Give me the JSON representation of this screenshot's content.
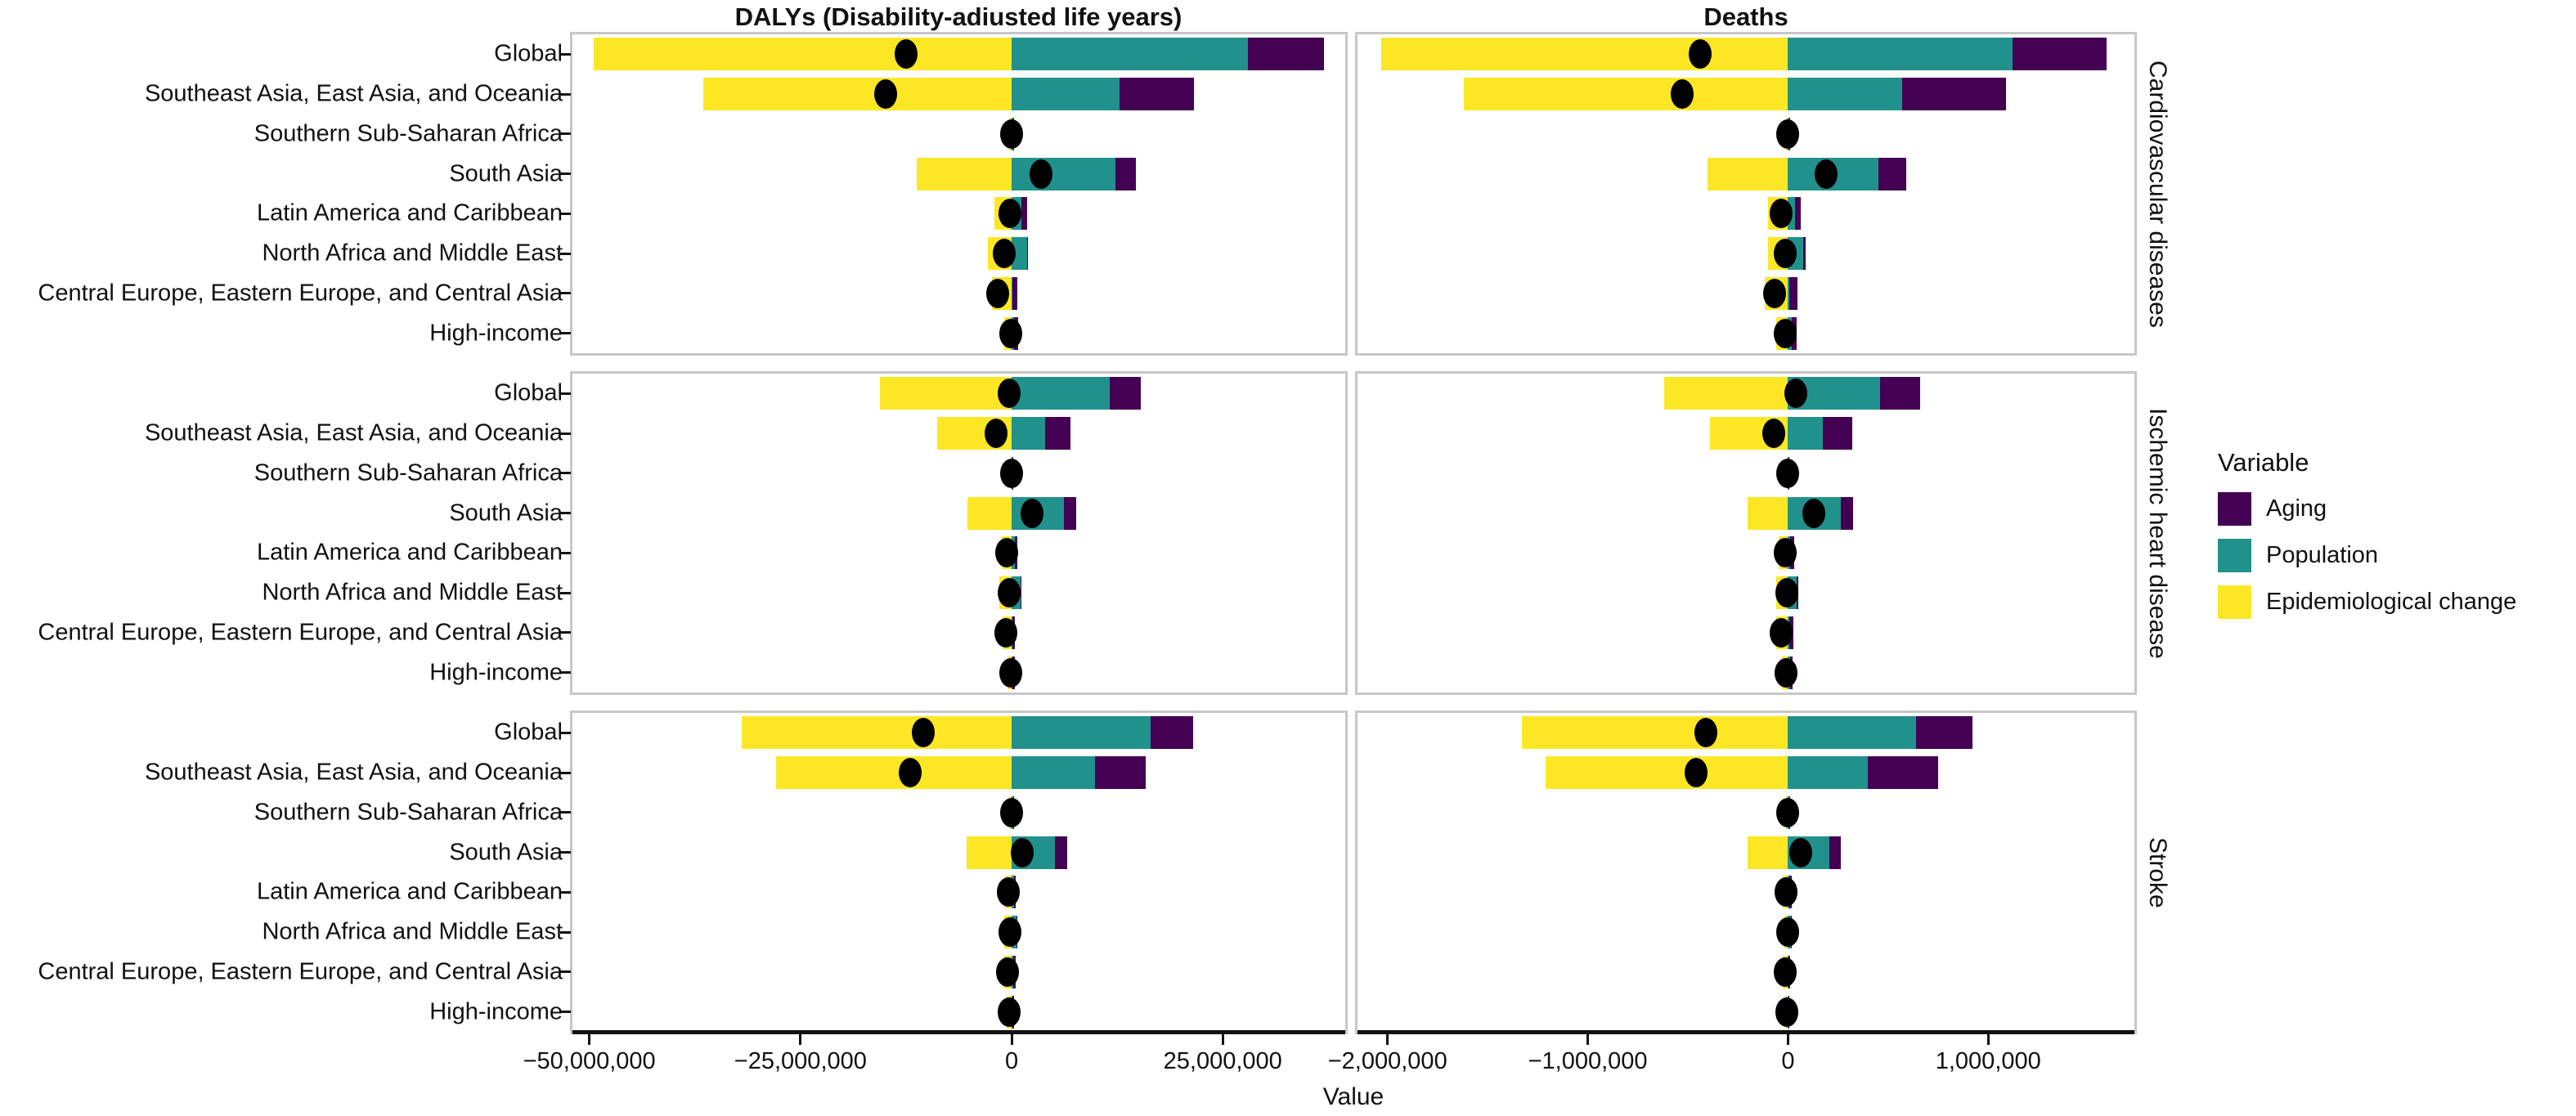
{
  "column_titles": [
    "DALYs (Disability-adiusted life years)",
    "Deaths"
  ],
  "x_axis_title": "Value",
  "facet_rows": [
    "Cardiovascular diseases",
    "Ischemic heart disease",
    "Stroke"
  ],
  "categories": [
    "Global",
    "Southeast Asia, East Asia, and Oceania",
    "Southern Sub-Saharan Africa",
    "South Asia",
    "Latin America and Caribbean",
    "North Africa and Middle East",
    "Central Europe, Eastern Europe, and Central Asia",
    "High-income"
  ],
  "legend": {
    "title": "Variable",
    "items": [
      {
        "label": "Aging",
        "color": "#440154"
      },
      {
        "label": "Population",
        "color": "#21918c"
      },
      {
        "label": "Epidemiological change",
        "color": "#fde725"
      }
    ]
  },
  "colors": {
    "aging": "#440154",
    "population": "#21918c",
    "epidemiological_change": "#fde725",
    "net_dot": "#000000",
    "panel_border": "#c7c7c7",
    "axis_line": "#111111"
  },
  "chart_data": {
    "type": "bar",
    "subtype": "horizontal-stacked-with-net-dot",
    "legend_position": "right",
    "grid": "off",
    "columns": [
      {
        "title": "DALYs (Disability-adiusted life years)",
        "xlim": [
          -52000000,
          39500000
        ],
        "ticks": [
          -50000000,
          -25000000,
          0,
          25000000
        ],
        "tick_labels": [
          "−50,000,000",
          "−25,000,000",
          "0",
          "25,000,000"
        ]
      },
      {
        "title": "Deaths",
        "xlim": [
          -2150000,
          1730000
        ],
        "ticks": [
          -2000000,
          -1000000,
          0,
          1000000
        ],
        "tick_labels": [
          "−2,000,000",
          "−1,000,000",
          "0",
          "1,000,000"
        ]
      }
    ],
    "panels": [
      {
        "facet_row": "Cardiovascular diseases",
        "column": "DALYs (Disability-adiusted life years)",
        "values": [
          {
            "region": "Global",
            "epidemiological_change": -49500000,
            "population": 28000000,
            "aging": 9000000,
            "net": -12500000
          },
          {
            "region": "Southeast Asia, East Asia, and Oceania",
            "epidemiological_change": -36500000,
            "population": 12800000,
            "aging": 8800000,
            "net": -14900000
          },
          {
            "region": "Southern Sub-Saharan Africa",
            "epidemiological_change": -300000,
            "population": 200000,
            "aging": 50000,
            "net": -50000
          },
          {
            "region": "South Asia",
            "epidemiological_change": -11200000,
            "population": 12300000,
            "aging": 2400000,
            "net": 3500000
          },
          {
            "region": "Latin America and Caribbean",
            "epidemiological_change": -2000000,
            "population": 1200000,
            "aging": 600000,
            "net": -200000
          },
          {
            "region": "North Africa and Middle East",
            "epidemiological_change": -2800000,
            "population": 1800000,
            "aging": 150000,
            "net": -850000
          },
          {
            "region": "Central Europe, Eastern Europe, and Central Asia",
            "epidemiological_change": -2300000,
            "population": 100000,
            "aging": 550000,
            "net": -1650000
          },
          {
            "region": "High-income",
            "epidemiological_change": -900000,
            "population": 300000,
            "aging": 450000,
            "net": -150000
          }
        ]
      },
      {
        "facet_row": "Cardiovascular diseases",
        "column": "Deaths",
        "values": [
          {
            "region": "Global",
            "epidemiological_change": -2030000,
            "population": 1120000,
            "aging": 470000,
            "net": -440000
          },
          {
            "region": "Southeast Asia, East Asia, and Oceania",
            "epidemiological_change": -1620000,
            "population": 570000,
            "aging": 520000,
            "net": -530000
          },
          {
            "region": "Southern Sub-Saharan Africa",
            "epidemiological_change": -10000,
            "population": 7000,
            "aging": 2000,
            "net": -1000
          },
          {
            "region": "South Asia",
            "epidemiological_change": -400000,
            "population": 450000,
            "aging": 140000,
            "net": 190000
          },
          {
            "region": "Latin America and Caribbean",
            "epidemiological_change": -100000,
            "population": 35000,
            "aging": 30000,
            "net": -35000
          },
          {
            "region": "North Africa and Middle East",
            "epidemiological_change": -100000,
            "population": 75000,
            "aging": 12000,
            "net": -13000
          },
          {
            "region": "Central Europe, Eastern Europe, and Central Asia",
            "epidemiological_change": -115000,
            "population": 7000,
            "aging": 40000,
            "net": -68000
          },
          {
            "region": "High-income",
            "epidemiological_change": -60000,
            "population": 20000,
            "aging": 25000,
            "net": -15000
          }
        ]
      },
      {
        "facet_row": "Ischemic heart disease",
        "column": "DALYs (Disability-adiusted life years)",
        "values": [
          {
            "region": "Global",
            "epidemiological_change": -15600000,
            "population": 11600000,
            "aging": 3700000,
            "net": -300000
          },
          {
            "region": "Southeast Asia, East Asia, and Oceania",
            "epidemiological_change": -8800000,
            "population": 4000000,
            "aging": 3000000,
            "net": -1800000
          },
          {
            "region": "Southern Sub-Saharan Africa",
            "epidemiological_change": -150000,
            "population": 100000,
            "aging": 30000,
            "net": -20000
          },
          {
            "region": "South Asia",
            "epidemiological_change": -5200000,
            "population": 6200000,
            "aging": 1400000,
            "net": 2400000
          },
          {
            "region": "Latin America and Caribbean",
            "epidemiological_change": -1200000,
            "population": 350000,
            "aging": 300000,
            "net": -550000
          },
          {
            "region": "North Africa and Middle East",
            "epidemiological_change": -1450000,
            "population": 1050000,
            "aging": 150000,
            "net": -250000
          },
          {
            "region": "Central Europe, Eastern Europe, and Central Asia",
            "epidemiological_change": -1100000,
            "population": 100000,
            "aging": 300000,
            "net": -700000
          },
          {
            "region": "High-income",
            "epidemiological_change": -450000,
            "population": 120000,
            "aging": 230000,
            "net": -100000
          }
        ]
      },
      {
        "facet_row": "Ischemic heart disease",
        "column": "Deaths",
        "values": [
          {
            "region": "Global",
            "epidemiological_change": -620000,
            "population": 460000,
            "aging": 200000,
            "net": 40000
          },
          {
            "region": "Southeast Asia, East Asia, and Oceania",
            "epidemiological_change": -390000,
            "population": 175000,
            "aging": 145000,
            "net": -70000
          },
          {
            "region": "Southern Sub-Saharan Africa",
            "epidemiological_change": -6000,
            "population": 4000,
            "aging": 1000,
            "net": -1000
          },
          {
            "region": "South Asia",
            "epidemiological_change": -200000,
            "population": 265000,
            "aging": 62000,
            "net": 127000
          },
          {
            "region": "Latin America and Caribbean",
            "epidemiological_change": -45000,
            "population": 12000,
            "aging": 18000,
            "net": -15000
          },
          {
            "region": "North Africa and Middle East",
            "epidemiological_change": -58000,
            "population": 45000,
            "aging": 8000,
            "net": -5000
          },
          {
            "region": "Central Europe, Eastern Europe, and Central Asia",
            "epidemiological_change": -60000,
            "population": 5000,
            "aging": 22000,
            "net": -33000
          },
          {
            "region": "High-income",
            "epidemiological_change": -30000,
            "population": 10000,
            "aging": 12000,
            "net": -8000
          }
        ]
      },
      {
        "facet_row": "Stroke",
        "column": "DALYs (Disability-adiusted life years)",
        "values": [
          {
            "region": "Global",
            "epidemiological_change": -32000000,
            "population": 16500000,
            "aging": 5000000,
            "net": -10500000
          },
          {
            "region": "Southeast Asia, East Asia, and Oceania",
            "epidemiological_change": -27900000,
            "population": 9900000,
            "aging": 6000000,
            "net": -12000000
          },
          {
            "region": "Southern Sub-Saharan Africa",
            "epidemiological_change": -250000,
            "population": 150000,
            "aging": 50000,
            "net": -50000
          },
          {
            "region": "South Asia",
            "epidemiological_change": -5300000,
            "population": 5100000,
            "aging": 1450000,
            "net": 1250000
          },
          {
            "region": "Latin America and Caribbean",
            "epidemiological_change": -800000,
            "population": 300000,
            "aging": 150000,
            "net": -350000
          },
          {
            "region": "North Africa and Middle East",
            "epidemiological_change": -850000,
            "population": 550000,
            "aging": 100000,
            "net": -200000
          },
          {
            "region": "Central Europe, Eastern Europe, and Central Asia",
            "epidemiological_change": -1000000,
            "population": 150000,
            "aging": 350000,
            "net": -500000
          },
          {
            "region": "High-income",
            "epidemiological_change": -550000,
            "population": 100000,
            "aging": 150000,
            "net": -300000
          }
        ]
      },
      {
        "facet_row": "Stroke",
        "column": "Deaths",
        "values": [
          {
            "region": "Global",
            "epidemiological_change": -1330000,
            "population": 640000,
            "aging": 280000,
            "net": -410000
          },
          {
            "region": "Southeast Asia, East Asia, and Oceania",
            "epidemiological_change": -1210000,
            "population": 400000,
            "aging": 350000,
            "net": -460000
          },
          {
            "region": "Southern Sub-Saharan Africa",
            "epidemiological_change": -8000,
            "population": 5000,
            "aging": 2000,
            "net": -1000
          },
          {
            "region": "South Asia",
            "epidemiological_change": -200000,
            "population": 205000,
            "aging": 57000,
            "net": 62000
          },
          {
            "region": "Latin America and Caribbean",
            "epidemiological_change": -26000,
            "population": 8000,
            "aging": 9000,
            "net": -9000
          },
          {
            "region": "North Africa and Middle East",
            "epidemiological_change": -20000,
            "population": 14000,
            "aging": 3000,
            "net": -3000
          },
          {
            "region": "Central Europe, Eastern Europe, and Central Asia",
            "epidemiological_change": -26000,
            "population": 3000,
            "aging": 9000,
            "net": -14000
          },
          {
            "region": "High-income",
            "epidemiological_change": -12000,
            "population": 4000,
            "aging": 4000,
            "net": -4000
          }
        ]
      }
    ]
  }
}
